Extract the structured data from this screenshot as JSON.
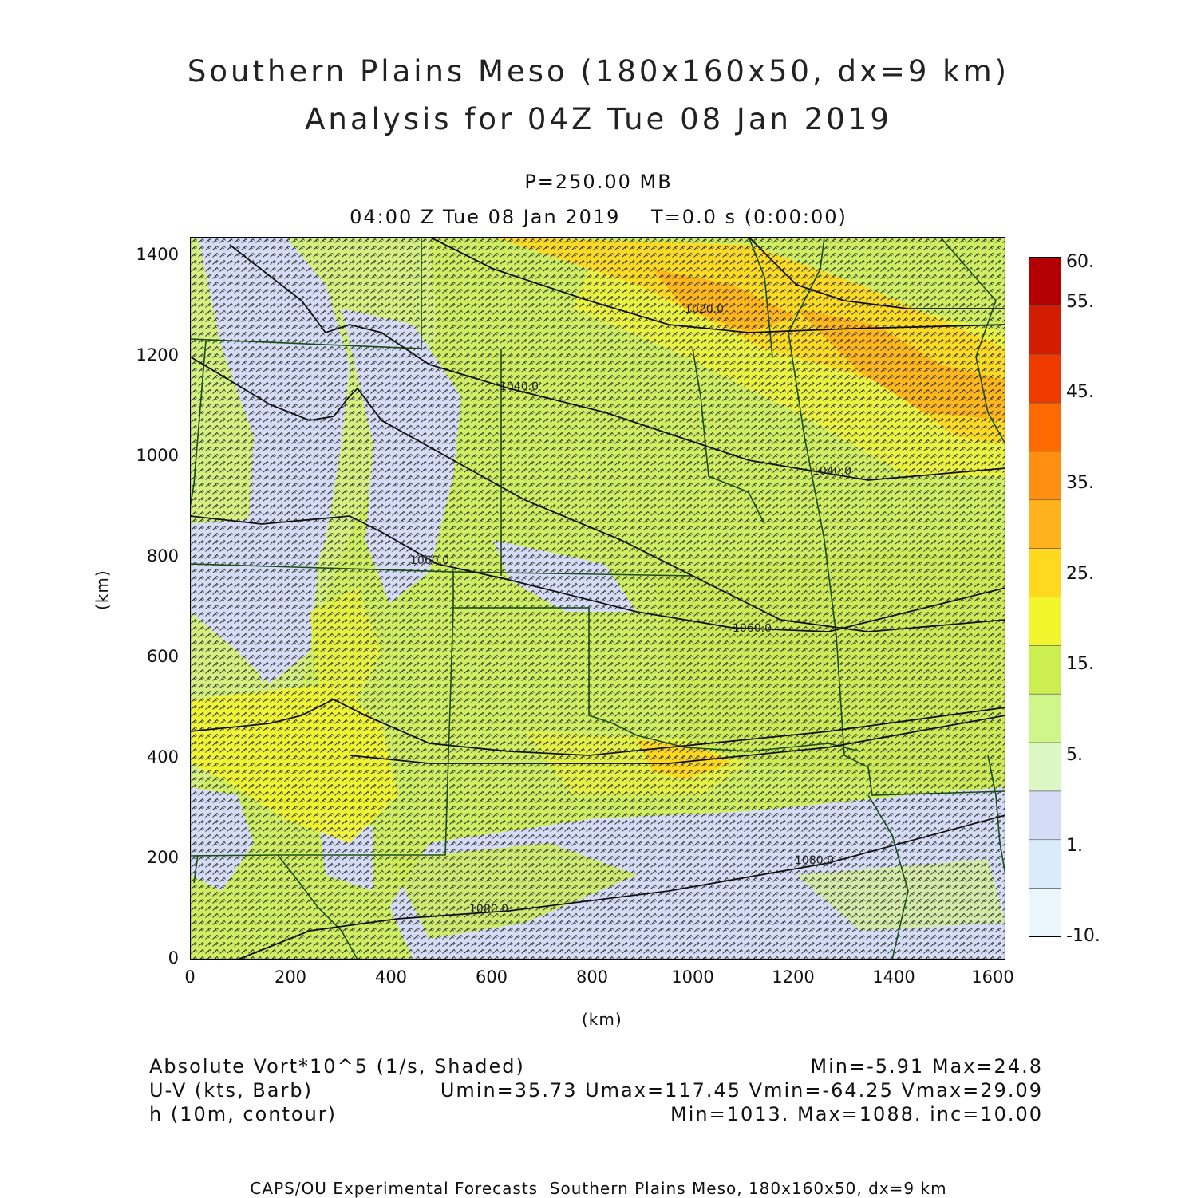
{
  "title": {
    "line1": "Southern Plains Meso (180x160x50, dx=9 km)",
    "line2": "Analysis for 04Z Tue 08 Jan 2019"
  },
  "subtitle": {
    "level": "P=250.00 MB",
    "time": "04:00 Z Tue 08 Jan 2019    T=0.0 s (0:00:00)"
  },
  "axes": {
    "xlabel": "(km)",
    "ylabel": "(km)",
    "xticks": [
      "0",
      "200",
      "400",
      "600",
      "800",
      "1000",
      "1200",
      "1400",
      "1600"
    ],
    "yticks": [
      "0",
      "200",
      "400",
      "600",
      "800",
      "1000",
      "1200",
      "1400"
    ],
    "xrange": [
      0,
      1620
    ],
    "yrange": [
      0,
      1440
    ]
  },
  "colorbar": {
    "labels": [
      "60.",
      "55.",
      "45.",
      "35.",
      "25.",
      "15.",
      "5.",
      "1.",
      "-10."
    ],
    "colors": [
      "#b30000",
      "#d41c00",
      "#f03a00",
      "#ff6a00",
      "#ff8f10",
      "#ffb21c",
      "#ffd820",
      "#f3f52c",
      "#cdee50",
      "#cff68a",
      "#dcf7c4",
      "#d5dcf6",
      "#dbebfb",
      "#ebf7fd"
    ]
  },
  "legend": {
    "left": [
      "Absolute Vort*10^5 (1/s, Shaded)",
      "U-V (kts, Barb)",
      "h (10m, contour)"
    ],
    "right": [
      "Min=-5.91 Max=24.8",
      "Umin=35.73 Umax=117.45 Vmin=-64.25 Vmax=29.09",
      "Min=1013. Max=1088. inc=10.00"
    ]
  },
  "contour_labels": [
    "1020.0",
    "1040.0",
    "1040.0",
    "1060.0",
    "1060.0",
    "1080.0",
    "1080.0"
  ],
  "footer": "CAPS/OU Experimental Forecasts  Southern Plains Meso, 180x160x50, dx=9 km"
}
